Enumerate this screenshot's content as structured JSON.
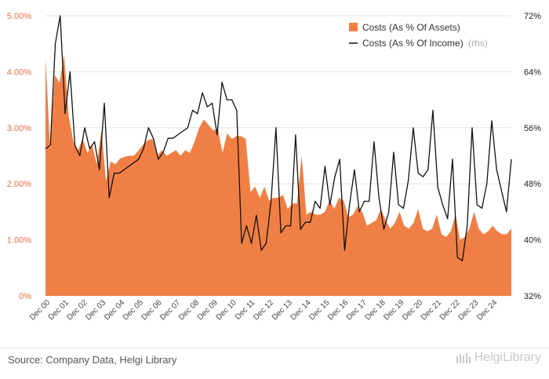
{
  "chart_data": {
    "type": "area+line",
    "x_labels": [
      "Dec 00",
      "Dec 01",
      "Dec 02",
      "Dec 03",
      "Dec 04",
      "Dec 05",
      "Dec 06",
      "Dec 07",
      "Dec 08",
      "Dec 09",
      "Dec 10",
      "Dec 11",
      "Dec 12",
      "Dec 13",
      "Dec 14",
      "Dec 15",
      "Dec 16",
      "Dec 17",
      "Dec 18",
      "Dec 19",
      "Dec 20",
      "Dec 21",
      "Dec 22",
      "Dec 23",
      "Dec 24"
    ],
    "left_axis": {
      "ticks": [
        "0%",
        "1.00%",
        "2.00%",
        "3.00%",
        "4.00%",
        "5.00%"
      ],
      "ylim": [
        0,
        5
      ]
    },
    "right_axis": {
      "ticks": [
        "32%",
        "40%",
        "48%",
        "56%",
        "64%",
        "72%"
      ],
      "ylim": [
        32,
        72
      ]
    },
    "series": [
      {
        "name": "Costs (As % Of Assets)",
        "type": "area",
        "color": "#f07f45",
        "axis": "left",
        "values": [
          4.25,
          2.6,
          3.95,
          3.8,
          4.3,
          3.2,
          2.75,
          2.6,
          2.8,
          2.55,
          2.7,
          2.35,
          2.95,
          2.05,
          2.4,
          2.35,
          2.45,
          2.48,
          2.5,
          2.5,
          2.6,
          2.7,
          2.78,
          2.8,
          2.5,
          2.6,
          2.5,
          2.55,
          2.6,
          2.5,
          2.6,
          2.55,
          2.75,
          3.0,
          3.15,
          3.05,
          2.95,
          2.98,
          2.55,
          2.9,
          2.8,
          2.85,
          2.85,
          2.8,
          1.85,
          1.95,
          1.75,
          1.95,
          1.7,
          1.75,
          1.75,
          1.8,
          1.55,
          1.65,
          1.65,
          2.5,
          1.45,
          1.5,
          1.45,
          1.45,
          1.5,
          1.7,
          1.55,
          1.75,
          1.7,
          1.4,
          1.45,
          1.6,
          1.5,
          1.25,
          1.3,
          1.35,
          1.55,
          1.35,
          1.2,
          1.3,
          1.5,
          1.25,
          1.2,
          1.3,
          1.55,
          1.2,
          1.15,
          1.2,
          1.45,
          1.1,
          1.05,
          1.15,
          1.45,
          1.0,
          1.05,
          1.2,
          1.5,
          1.2,
          1.1,
          1.15,
          1.25,
          1.15,
          1.1,
          1.1,
          1.2
        ]
      },
      {
        "name": "Costs (As % Of Income)",
        "suffix": "(rhs)",
        "type": "line",
        "color": "#111111",
        "axis": "right",
        "values": [
          53,
          53.5,
          68,
          72,
          58,
          64,
          53.5,
          52,
          56,
          53,
          54,
          50,
          59.5,
          46,
          49.5,
          49.5,
          50,
          50.5,
          51,
          51.5,
          53,
          56,
          54.5,
          51.5,
          52.5,
          54.5,
          54.5,
          55,
          55.5,
          56,
          58.5,
          58,
          61,
          59,
          59.5,
          55,
          62.5,
          60,
          60,
          58.5,
          39.5,
          42,
          39.5,
          43.5,
          38.5,
          39.5,
          45.5,
          56,
          41,
          42,
          42,
          55,
          41.5,
          42.5,
          42.5,
          45.5,
          44.5,
          50.5,
          45,
          49,
          51.5,
          38.5,
          45,
          50,
          44,
          45.5,
          45.5,
          54,
          46,
          41.5,
          44,
          52.5,
          45,
          44.5,
          48.5,
          56,
          49.5,
          49,
          50,
          58.5,
          47.5,
          45,
          43,
          51.5,
          37.5,
          37,
          42,
          56,
          45,
          44.5,
          48,
          57,
          50,
          47,
          44,
          51.5
        ]
      }
    ],
    "legend_position": "top-right",
    "grid": "horizontal"
  },
  "footer": {
    "source": "Source: Company Data, Helgi Library",
    "logo": "HelgiLibrary"
  }
}
